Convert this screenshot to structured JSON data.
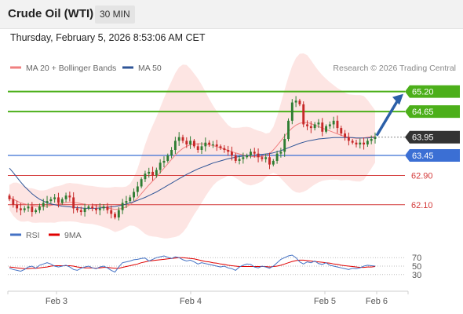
{
  "header": {
    "symbol": "Crude Oil (WTI)",
    "timeframe": "30 MIN"
  },
  "timestamp": "Thursday, February 5, 2026 8:53:06 AM CET",
  "legend": {
    "items": [
      {
        "label": "MA 20 + Bollinger Bands",
        "color": "#f08080"
      },
      {
        "label": "MA 50",
        "color": "#2f5597"
      }
    ],
    "credit": "Research © 2026 Trading Central"
  },
  "rsi_legend": {
    "items": [
      {
        "label": "RSI",
        "color": "#4472c4"
      },
      {
        "label": "9MA",
        "color": "#e00000"
      }
    ]
  },
  "colors": {
    "bull": "#2e7d32",
    "bear": "#c62828",
    "resistance": "#4caf1a",
    "support": "#d43a3a",
    "pivot": "#3b6fd4",
    "current": "#333333",
    "forecast_arrow": "#2b5fa8",
    "band_fill": "#fde0de"
  },
  "chart_data": {
    "type": "candlestick",
    "ylim": [
      61.6,
      65.6
    ],
    "x_tick_labels": [
      "Feb 3",
      "Feb 4",
      "Feb 5",
      "Feb 6"
    ],
    "levels": [
      {
        "value": 65.2,
        "label": "65.20",
        "kind": "resistance"
      },
      {
        "value": 64.65,
        "label": "64.65",
        "kind": "resistance"
      },
      {
        "value": 63.95,
        "label": "63.95",
        "kind": "current"
      },
      {
        "value": 63.45,
        "label": "63.45",
        "kind": "pivot"
      },
      {
        "value": 62.9,
        "label": "62.90",
        "kind": "support"
      },
      {
        "value": 62.1,
        "label": "62.10",
        "kind": "support"
      }
    ],
    "forecast_target": 65.2,
    "closes": [
      62.25,
      62.1,
      62.0,
      61.95,
      62.0,
      62.05,
      61.9,
      61.95,
      62.05,
      62.15,
      62.2,
      62.25,
      62.3,
      62.15,
      62.25,
      62.35,
      62.3,
      62.0,
      61.95,
      61.9,
      62.0,
      62.05,
      62.0,
      61.95,
      62.0,
      62.05,
      61.95,
      61.85,
      61.75,
      61.95,
      62.15,
      62.2,
      62.3,
      62.45,
      62.6,
      62.8,
      62.95,
      63.0,
      62.9,
      63.05,
      63.25,
      63.3,
      63.45,
      63.6,
      63.85,
      63.95,
      63.85,
      63.75,
      63.85,
      63.7,
      63.6,
      63.7,
      63.8,
      63.75,
      63.75,
      63.7,
      63.65,
      63.6,
      63.55,
      63.45,
      63.3,
      63.35,
      63.4,
      63.45,
      63.55,
      63.5,
      63.4,
      63.35,
      63.4,
      63.2,
      63.3,
      63.5,
      63.55,
      63.9,
      64.4,
      64.9,
      64.95,
      64.85,
      64.3,
      64.25,
      64.2,
      64.3,
      64.35,
      64.1,
      64.25,
      64.3,
      64.4,
      64.2,
      64.05,
      63.95,
      63.85,
      63.8,
      63.75,
      63.8,
      63.75,
      63.85,
      63.9,
      63.95
    ],
    "ma20": [
      62.3,
      62.25,
      62.2,
      62.15,
      62.12,
      62.1,
      62.08,
      62.06,
      62.05,
      62.05,
      62.06,
      62.08,
      62.1,
      62.12,
      62.14,
      62.16,
      62.17,
      62.16,
      62.15,
      62.13,
      62.11,
      62.1,
      62.09,
      62.07,
      62.05,
      62.03,
      62.01,
      61.99,
      61.97,
      61.98,
      62.0,
      62.04,
      62.1,
      62.18,
      62.28,
      62.4,
      62.52,
      62.64,
      62.75,
      62.86,
      62.98,
      63.1,
      63.22,
      63.34,
      63.46,
      63.56,
      63.64,
      63.7,
      63.74,
      63.76,
      63.77,
      63.77,
      63.76,
      63.74,
      63.72,
      63.69,
      63.66,
      63.62,
      63.59,
      63.55,
      63.52,
      63.49,
      63.46,
      63.44,
      63.42,
      63.41,
      63.41,
      63.42,
      63.45,
      63.5,
      63.6,
      63.72,
      63.85,
      63.98,
      64.1,
      64.2,
      64.28,
      64.33,
      64.35,
      64.35,
      64.32,
      64.28,
      64.24,
      64.2,
      64.16,
      64.12,
      64.08,
      64.04,
      64.0,
      63.97,
      63.95,
      63.93,
      63.92,
      63.92,
      63.93,
      63.95,
      63.96,
      63.97
    ],
    "ma50": [
      63.1,
      62.98,
      62.85,
      62.72,
      62.6,
      62.5,
      62.4,
      62.32,
      62.25,
      62.2,
      62.15,
      62.12,
      62.1,
      62.08,
      62.06,
      62.05,
      62.04,
      62.03,
      62.02,
      62.01,
      62.0,
      62.0,
      62.0,
      62.0,
      62.01,
      62.02,
      62.03,
      62.04,
      62.05,
      62.07,
      62.09,
      62.12,
      62.15,
      62.18,
      62.22,
      62.26,
      62.3,
      62.35,
      62.4,
      62.45,
      62.51,
      62.57,
      62.63,
      62.69,
      62.75,
      62.81,
      62.87,
      62.93,
      62.98,
      63.03,
      63.08,
      63.12,
      63.16,
      63.2,
      63.24,
      63.27,
      63.3,
      63.33,
      63.36,
      63.38,
      63.4,
      63.42,
      63.43,
      63.44,
      63.45,
      63.46,
      63.47,
      63.48,
      63.49,
      63.5,
      63.52,
      63.55,
      63.58,
      63.62,
      63.66,
      63.7,
      63.74,
      63.78,
      63.81,
      63.84,
      63.86,
      63.88,
      63.9,
      63.91,
      63.92,
      63.93,
      63.94,
      63.94,
      63.94,
      63.94,
      63.94,
      63.94,
      63.93,
      63.93,
      63.93,
      63.93,
      63.94,
      63.94
    ],
    "rsi": {
      "ylim": [
        0,
        100
      ],
      "ticks": [
        70,
        50,
        30
      ],
      "rsi": [
        45,
        42,
        40,
        38,
        42,
        48,
        50,
        45,
        52,
        55,
        58,
        55,
        50,
        48,
        50,
        52,
        48,
        42,
        40,
        45,
        48,
        50,
        46,
        44,
        48,
        50,
        46,
        40,
        36,
        48,
        58,
        60,
        62,
        65,
        66,
        68,
        69,
        62,
        66,
        70,
        72,
        74,
        71,
        68,
        72,
        70,
        65,
        62,
        64,
        60,
        55,
        58,
        56,
        54,
        52,
        50,
        48,
        50,
        46,
        44,
        40,
        48,
        52,
        55,
        54,
        48,
        46,
        50,
        48,
        45,
        50,
        58,
        66,
        70,
        74,
        76,
        70,
        60,
        55,
        60,
        58,
        62,
        56,
        54,
        58,
        52,
        50,
        48,
        46,
        44,
        42,
        45,
        44,
        46,
        50,
        52,
        51,
        50
      ],
      "ma9": [
        48,
        47,
        46,
        45,
        44,
        44,
        45,
        45,
        46,
        47,
        48,
        50,
        51,
        51,
        51,
        51,
        51,
        50,
        48,
        47,
        46,
        46,
        46,
        45,
        46,
        47,
        47,
        46,
        45,
        45,
        47,
        49,
        51,
        53,
        55,
        58,
        60,
        62,
        63,
        64,
        65,
        66,
        67,
        68,
        69,
        70,
        70,
        69,
        68,
        67,
        65,
        63,
        61,
        60,
        58,
        57,
        55,
        54,
        52,
        51,
        50,
        49,
        49,
        49,
        49,
        49,
        49,
        49,
        49,
        48,
        49,
        50,
        52,
        55,
        58,
        61,
        63,
        64,
        64,
        63,
        62,
        61,
        60,
        59,
        58,
        57,
        55,
        54,
        52,
        51,
        50,
        49,
        48,
        47,
        47,
        48,
        48,
        49
      ]
    }
  }
}
